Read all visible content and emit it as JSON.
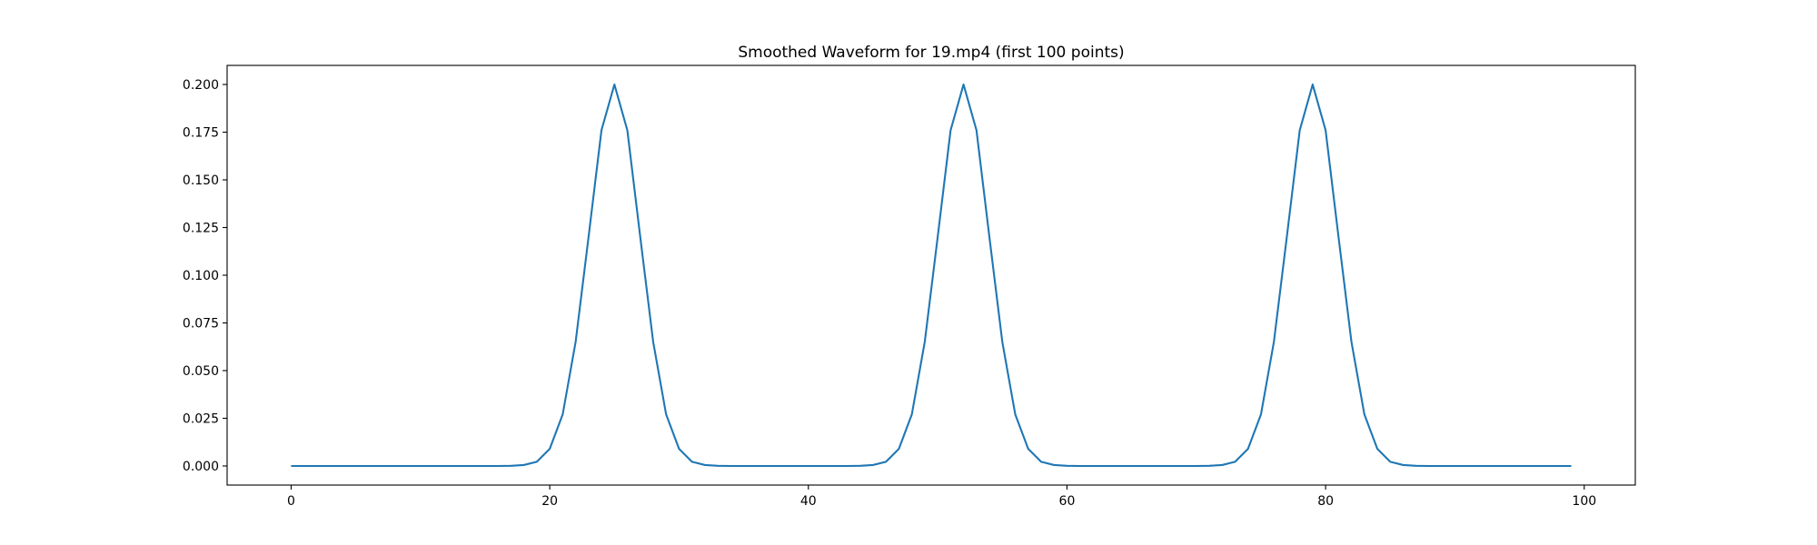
{
  "chart_data": {
    "type": "line",
    "title": "Smoothed Waveform for 19.mp4 (first 100 points)",
    "xlabel": "",
    "ylabel": "",
    "xlim": [
      -4.95,
      103.95
    ],
    "ylim": [
      -0.01,
      0.21
    ],
    "grid": false,
    "x_ticks": [
      0,
      20,
      40,
      60,
      80,
      100
    ],
    "x_tick_labels": [
      "0",
      "20",
      "40",
      "60",
      "80",
      "100"
    ],
    "y_ticks": [
      0,
      0.025,
      0.05,
      0.075,
      0.1,
      0.125,
      0.15,
      0.175,
      0.2
    ],
    "y_tick_labels": [
      "0.000",
      "0.025",
      "0.050",
      "0.075",
      "0.100",
      "0.125",
      "0.150",
      "0.175",
      "0.200"
    ],
    "line_color": "#1f77b4",
    "series": [
      {
        "x_start": 0,
        "values": [
          0,
          0,
          0,
          0,
          0,
          0,
          0,
          0,
          0,
          0,
          0,
          0,
          0,
          0,
          0,
          0,
          0,
          0.0001,
          0.0005,
          0.0022,
          0.009,
          0.027,
          0.065,
          0.12,
          0.176,
          0.2,
          0.176,
          0.12,
          0.065,
          0.027,
          0.009,
          0.0022,
          0.0005,
          0.0001,
          0,
          0,
          0,
          0,
          0,
          0,
          0,
          0,
          0,
          0,
          0.0001,
          0.0005,
          0.0022,
          0.009,
          0.027,
          0.065,
          0.12,
          0.176,
          0.2,
          0.176,
          0.12,
          0.065,
          0.027,
          0.009,
          0.0022,
          0.0005,
          0.0001,
          0,
          0,
          0,
          0,
          0,
          0,
          0,
          0,
          0,
          0,
          0.0001,
          0.0005,
          0.0022,
          0.009,
          0.027,
          0.065,
          0.12,
          0.176,
          0.2,
          0.176,
          0.12,
          0.065,
          0.027,
          0.009,
          0.0022,
          0.0005,
          0.0001,
          0,
          0,
          0,
          0,
          0,
          0,
          0,
          0,
          0,
          0,
          0,
          0
        ]
      }
    ]
  }
}
